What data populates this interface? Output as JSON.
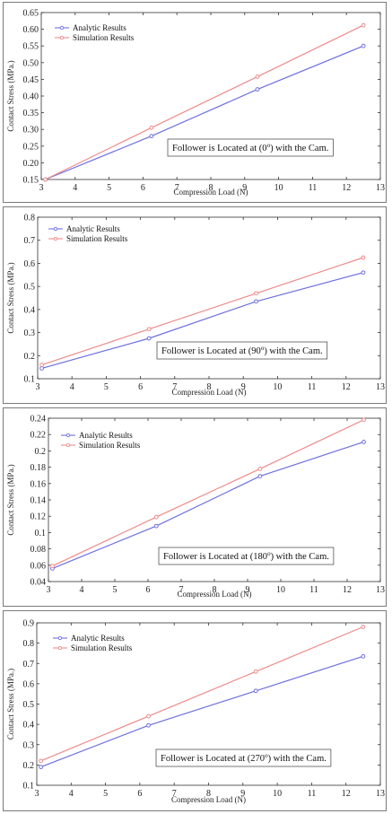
{
  "colors": {
    "analytic": "#6f6fe0",
    "simulation": "#ef8a8a",
    "axis": "#333333"
  },
  "chart_data": [
    {
      "type": "line",
      "xlabel": "Compression Load (N)",
      "ylabel": "Contact Stress (MPa.)",
      "xlim": [
        3,
        13
      ],
      "ylim": [
        0.15,
        0.65
      ],
      "xticks": [
        3,
        4,
        5,
        6,
        7,
        8,
        9,
        10,
        11,
        12,
        13
      ],
      "yticks": [
        0.15,
        0.2,
        0.25,
        0.3,
        0.35,
        0.4,
        0.45,
        0.5,
        0.55,
        0.6,
        0.65
      ],
      "ytick_decimals": 2,
      "grid": false,
      "legend": "top-left",
      "annotation": {
        "prefix": "Follower is Located at (0",
        "sup": "o",
        "suffix": ") with the Cam."
      },
      "series": [
        {
          "name": "Analytic Results",
          "color": "analytic",
          "x": [
            3.12,
            6.25,
            9.375,
            12.5
          ],
          "values": [
            0.15,
            0.28,
            0.42,
            0.55
          ]
        },
        {
          "name": "Simulation Results",
          "color": "simulation",
          "x": [
            3.12,
            6.25,
            9.375,
            12.5
          ],
          "values": [
            0.15,
            0.305,
            0.458,
            0.612
          ]
        }
      ]
    },
    {
      "type": "line",
      "xlabel": "Compression Load (N)",
      "ylabel": "Contact Stress (MPa.)",
      "xlim": [
        3,
        13
      ],
      "ylim": [
        0.1,
        0.8
      ],
      "xticks": [
        3,
        4,
        5,
        6,
        7,
        8,
        9,
        10,
        11,
        12,
        13
      ],
      "yticks": [
        0.1,
        0.2,
        0.3,
        0.4,
        0.5,
        0.6,
        0.7,
        0.8
      ],
      "ytick_decimals": 1,
      "grid": false,
      "legend": "top-left",
      "annotation": {
        "prefix": "Follower is Located at (90",
        "sup": "o",
        "suffix": ") with the Cam."
      },
      "series": [
        {
          "name": "Analytic Results",
          "color": "analytic",
          "x": [
            3.12,
            6.25,
            9.375,
            12.5
          ],
          "values": [
            0.145,
            0.275,
            0.435,
            0.56
          ]
        },
        {
          "name": "Simulation Results",
          "color": "simulation",
          "x": [
            3.12,
            6.25,
            9.375,
            12.5
          ],
          "values": [
            0.16,
            0.315,
            0.47,
            0.625
          ]
        }
      ]
    },
    {
      "type": "line",
      "xlabel": "Compression Load (N)",
      "ylabel": "Contact Stress (MPa.)",
      "xlim": [
        3,
        13
      ],
      "ylim": [
        0.04,
        0.24
      ],
      "xticks": [
        3,
        4,
        5,
        6,
        7,
        8,
        9,
        10,
        11,
        12,
        13
      ],
      "yticks": [
        0.04,
        0.06,
        0.08,
        0.1,
        0.12,
        0.14,
        0.16,
        0.18,
        0.2,
        0.22,
        0.24
      ],
      "ytick_labels": [
        "0.04",
        "0.06",
        "0.08",
        "0.1",
        "0.12",
        "0.14",
        "0.16",
        "0.18",
        "0.2",
        "0.22",
        "0.24"
      ],
      "grid": false,
      "legend": "top-left",
      "annotation": {
        "prefix": "Follower is Located at (180",
        "sup": "o",
        "suffix": ") with the Cam."
      },
      "series": [
        {
          "name": "Analytic Results",
          "color": "analytic",
          "x": [
            3.12,
            6.25,
            9.375,
            12.5
          ],
          "values": [
            0.056,
            0.108,
            0.169,
            0.211
          ]
        },
        {
          "name": "Simulation Results",
          "color": "simulation",
          "x": [
            3.12,
            6.25,
            9.375,
            12.5
          ],
          "values": [
            0.059,
            0.119,
            0.178,
            0.238
          ]
        }
      ]
    },
    {
      "type": "line",
      "xlabel": "Compression Load (N)",
      "ylabel": "Contact Stress (MPa.)",
      "xlim": [
        3,
        13
      ],
      "ylim": [
        0.1,
        0.9
      ],
      "xticks": [
        3,
        4,
        5,
        6,
        7,
        8,
        9,
        10,
        11,
        12,
        13
      ],
      "yticks": [
        0.1,
        0.2,
        0.3,
        0.4,
        0.5,
        0.6,
        0.7,
        0.8,
        0.9
      ],
      "ytick_decimals": 1,
      "grid": false,
      "legend": "top-left",
      "annotation": {
        "prefix": "Follower is Located at (270",
        "sup": "o",
        "suffix": ") with the Cam."
      },
      "series": [
        {
          "name": "Analytic Results",
          "color": "analytic",
          "x": [
            3.12,
            6.25,
            9.375,
            12.5
          ],
          "values": [
            0.19,
            0.395,
            0.565,
            0.735
          ]
        },
        {
          "name": "Simulation Results",
          "color": "simulation",
          "x": [
            3.12,
            6.25,
            9.375,
            12.5
          ],
          "values": [
            0.22,
            0.44,
            0.66,
            0.88
          ]
        }
      ]
    }
  ]
}
